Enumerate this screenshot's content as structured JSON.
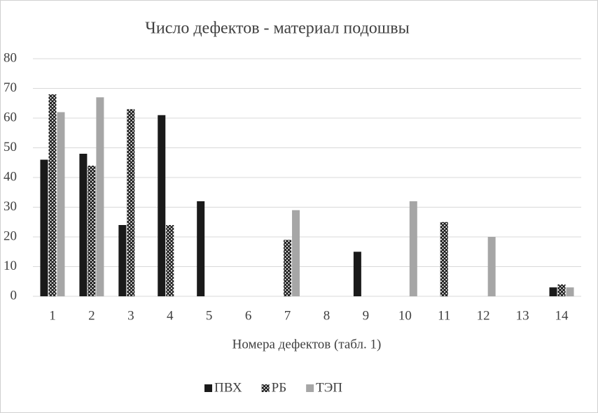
{
  "chart_data": {
    "type": "bar",
    "title": "Число дефектов -  материал подошвы",
    "x_label": "Номера дефектов (табл. 1)",
    "categories": [
      "1",
      "2",
      "3",
      "4",
      "5",
      "6",
      "7",
      "8",
      "9",
      "10",
      "11",
      "12",
      "13",
      "14"
    ],
    "series": [
      {
        "name": "ПВХ",
        "color": "#1a1a1a",
        "values": [
          46,
          48,
          24,
          61,
          32,
          0,
          0,
          0,
          15,
          0,
          0,
          0,
          0,
          3
        ]
      },
      {
        "name": "РБ",
        "color": "#1a1a1a",
        "pattern": "crosshatch",
        "values": [
          68,
          44,
          63,
          24,
          0,
          0,
          19,
          0,
          0,
          0,
          25,
          0,
          0,
          4
        ]
      },
      {
        "name": "ТЭП",
        "color": "#a6a6a6",
        "values": [
          62,
          67,
          0,
          0,
          0,
          0,
          29,
          0,
          0,
          32,
          0,
          20,
          0,
          3
        ]
      }
    ],
    "ylim": [
      0,
      80
    ],
    "yticks": [
      0,
      10,
      20,
      30,
      40,
      50,
      60,
      70,
      80
    ],
    "grid": true,
    "legend": "bottom"
  }
}
